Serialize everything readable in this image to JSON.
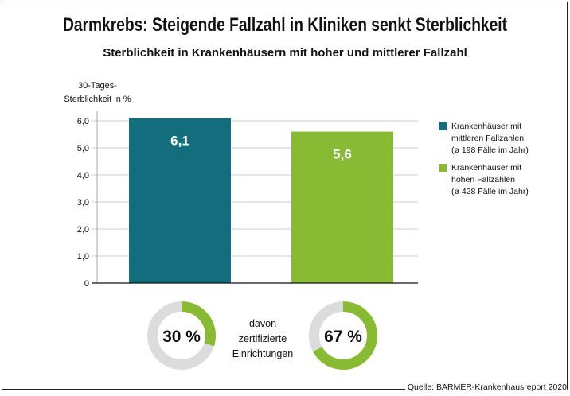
{
  "chart_data": {
    "type": "bar",
    "title": "Darmkrebs: Steigende Fallzahl in Kliniken senkt Sterblichkeit",
    "subtitle": "Sterblichkeit in Krankenhäusern mit hoher und mittlerer Fallzahl",
    "ylabel_lines": [
      "30-Tages-",
      "Sterblichkeit in %"
    ],
    "ylim": [
      0,
      6
    ],
    "yticks": [
      "0",
      "1,0",
      "2,0",
      "3,0",
      "4,0",
      "5,0",
      "6,0"
    ],
    "grid": true,
    "series": [
      {
        "name": "Krankenhäuser mit mittleren Fallzahlen (ø 198 Fälle im Jahr)",
        "legend_lines": [
          "Krankenhäuser mit",
          "mittleren Fallzahlen",
          "(ø 198 Fälle im Jahr)"
        ],
        "value": 6.1,
        "label": "6,1",
        "color": "#136d7d"
      },
      {
        "name": "Krankenhäuser mit hohen Fallzahlen (ø 428 Fälle im Jahr)",
        "legend_lines": [
          "Krankenhäuser mit",
          "hohen Fallzahlen",
          "(ø 428 Fälle im Jahr)"
        ],
        "value": 5.6,
        "label": "5,6",
        "color": "#88bb33"
      }
    ],
    "legend": "right",
    "donuts": [
      {
        "value": 30,
        "label": "30 %"
      },
      {
        "value": 67,
        "label": "67 %"
      }
    ],
    "donut_caption": [
      "davon",
      "zertifizierte",
      "Einrichtungen"
    ],
    "source": "Quelle: BARMER-Krankenhausreport 2020"
  }
}
